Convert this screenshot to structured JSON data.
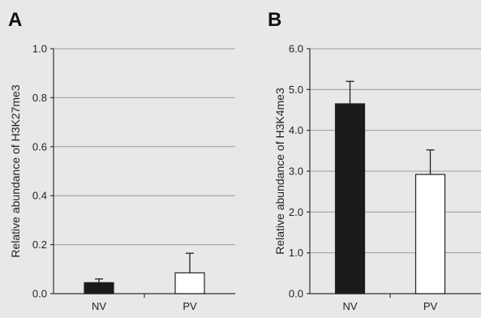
{
  "colors": {
    "background": "#e8e8e8",
    "bar_nv": "#1a1a1a",
    "bar_pv": "#ffffff",
    "grid": "#9a9a9a"
  },
  "chart_data": [
    {
      "panel_label": "A",
      "type": "bar",
      "categories": [
        "NV",
        "PV"
      ],
      "values": [
        0.045,
        0.085
      ],
      "errors": [
        0.015,
        0.08
      ],
      "ylabel": "Relative abundance of H3K27me3",
      "ylim": [
        0,
        1.0
      ],
      "yticks": [
        "0.0",
        "0.2",
        "0.4",
        "0.6",
        "0.8",
        "1.0"
      ],
      "ytick_values": [
        0,
        0.2,
        0.4,
        0.6,
        0.8,
        1.0
      ],
      "grid": true,
      "bar_colors": [
        "#1a1a1a",
        "#ffffff"
      ]
    },
    {
      "panel_label": "B",
      "type": "bar",
      "categories": [
        "NV",
        "PV"
      ],
      "values": [
        4.65,
        2.92
      ],
      "errors": [
        0.55,
        0.6
      ],
      "ylabel": "Relative abundance of H3K4me3",
      "ylim": [
        0,
        6.0
      ],
      "yticks": [
        "0.0",
        "1.0",
        "2.0",
        "3.0",
        "4.0",
        "5.0",
        "6.0"
      ],
      "ytick_values": [
        0,
        1,
        2,
        3,
        4,
        5,
        6
      ],
      "grid": true,
      "bar_colors": [
        "#1a1a1a",
        "#ffffff"
      ]
    }
  ]
}
